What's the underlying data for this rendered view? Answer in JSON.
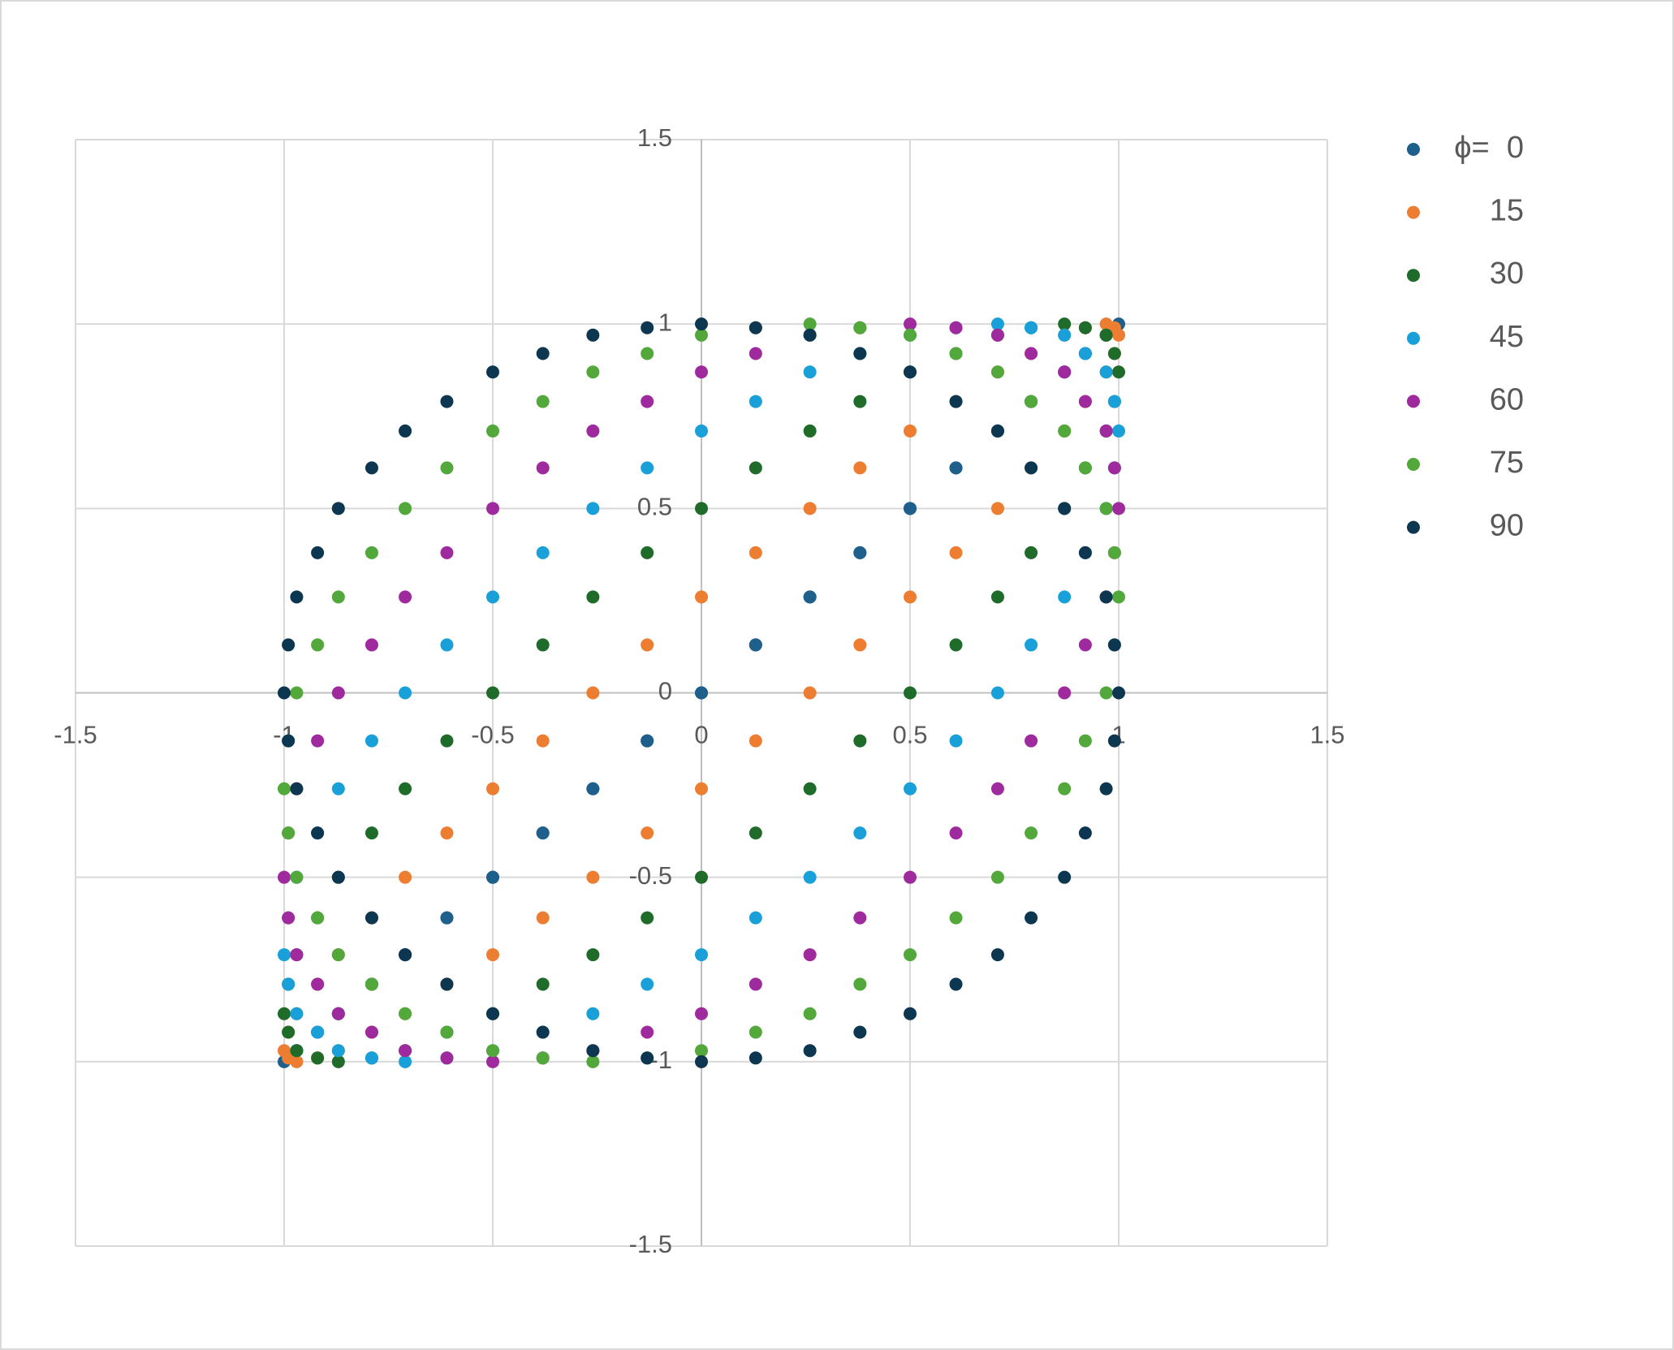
{
  "chart_data": {
    "type": "scatter",
    "x": [
      1,
      0.99,
      0.97,
      0.92,
      0.87,
      0.79,
      0.71,
      0.61,
      0.5,
      0.38,
      0.26,
      0.13,
      0,
      -0.13,
      -0.26,
      -0.38,
      -0.5,
      -0.61,
      -0.71,
      -0.79,
      -0.87,
      -0.92,
      -0.97,
      -0.99,
      -1,
      -0.99,
      -0.97,
      -0.92,
      -0.87,
      -0.79,
      -0.71,
      -0.61,
      -0.5,
      -0.38,
      -0.26,
      -0.13,
      0,
      0.13,
      0.26,
      0.38,
      0.5,
      0.61,
      0.71,
      0.79,
      0.87,
      0.92,
      0.97,
      0.99
    ],
    "series": [
      {
        "name": "ϕ=  0",
        "color": "#1f5f8b",
        "values": [
          1,
          0.99,
          0.97,
          0.92,
          0.87,
          0.79,
          0.71,
          0.61,
          0.5,
          0.38,
          0.26,
          0.13,
          0,
          -0.13,
          -0.26,
          -0.38,
          -0.5,
          -0.61,
          -0.71,
          -0.79,
          -0.87,
          -0.92,
          -0.97,
          -0.99,
          -1,
          -0.99,
          -0.97,
          -0.92,
          -0.87,
          -0.79,
          -0.71,
          -0.61,
          -0.5,
          -0.38,
          -0.26,
          -0.13,
          0,
          0.13,
          0.26,
          0.38,
          0.5,
          0.61,
          0.71,
          0.79,
          0.87,
          0.92,
          0.97,
          0.99
        ]
      },
      {
        "name": "15",
        "color": "#ed7d31",
        "values": [
          0.97,
          0.99,
          1,
          0.99,
          0.97,
          0.92,
          0.87,
          0.79,
          0.71,
          0.61,
          0.5,
          0.38,
          0.26,
          0.13,
          0,
          -0.13,
          -0.26,
          -0.38,
          -0.5,
          -0.61,
          -0.71,
          -0.79,
          -0.87,
          -0.92,
          -0.97,
          -0.99,
          -1,
          -0.99,
          -0.97,
          -0.92,
          -0.87,
          -0.79,
          -0.71,
          -0.61,
          -0.5,
          -0.38,
          -0.26,
          -0.13,
          0,
          0.13,
          0.26,
          0.38,
          0.5,
          0.61,
          0.71,
          0.79,
          0.87,
          0.92
        ]
      },
      {
        "name": "30",
        "color": "#1e6b2a",
        "values": [
          0.87,
          0.92,
          0.97,
          0.99,
          1,
          0.99,
          0.97,
          0.92,
          0.87,
          0.79,
          0.71,
          0.61,
          0.5,
          0.38,
          0.26,
          0.13,
          0,
          -0.13,
          -0.26,
          -0.38,
          -0.5,
          -0.61,
          -0.71,
          -0.79,
          -0.87,
          -0.92,
          -0.97,
          -0.99,
          -1,
          -0.99,
          -0.97,
          -0.92,
          -0.87,
          -0.79,
          -0.71,
          -0.61,
          -0.5,
          -0.38,
          -0.26,
          -0.13,
          0,
          0.13,
          0.26,
          0.38,
          0.5,
          0.61,
          0.71,
          0.79
        ]
      },
      {
        "name": "45",
        "color": "#1aa0d8",
        "values": [
          0.71,
          0.79,
          0.87,
          0.92,
          0.97,
          0.99,
          1,
          0.99,
          0.97,
          0.92,
          0.87,
          0.79,
          0.71,
          0.61,
          0.5,
          0.38,
          0.26,
          0.13,
          0,
          -0.13,
          -0.26,
          -0.38,
          -0.5,
          -0.61,
          -0.71,
          -0.79,
          -0.87,
          -0.92,
          -0.97,
          -0.99,
          -1,
          -0.99,
          -0.97,
          -0.92,
          -0.87,
          -0.79,
          -0.71,
          -0.61,
          -0.5,
          -0.38,
          -0.26,
          -0.13,
          0,
          0.13,
          0.26,
          0.38,
          0.5,
          0.61
        ]
      },
      {
        "name": "60",
        "color": "#9e2a9e",
        "values": [
          0.5,
          0.61,
          0.71,
          0.79,
          0.87,
          0.92,
          0.97,
          0.99,
          1,
          0.99,
          0.97,
          0.92,
          0.87,
          0.79,
          0.71,
          0.61,
          0.5,
          0.38,
          0.26,
          0.13,
          0,
          -0.13,
          -0.26,
          -0.38,
          -0.5,
          -0.61,
          -0.71,
          -0.79,
          -0.87,
          -0.92,
          -0.97,
          -0.99,
          -1,
          -0.99,
          -0.97,
          -0.92,
          -0.87,
          -0.79,
          -0.71,
          -0.61,
          -0.5,
          -0.38,
          -0.26,
          -0.13,
          0,
          0.13,
          0.26,
          0.38
        ]
      },
      {
        "name": "75",
        "color": "#52a83a",
        "values": [
          0.26,
          0.38,
          0.5,
          0.61,
          0.71,
          0.79,
          0.87,
          0.92,
          0.97,
          0.99,
          1,
          0.99,
          0.97,
          0.92,
          0.87,
          0.79,
          0.71,
          0.61,
          0.5,
          0.38,
          0.26,
          0.13,
          0,
          -0.13,
          -0.26,
          -0.38,
          -0.5,
          -0.61,
          -0.71,
          -0.79,
          -0.87,
          -0.92,
          -0.97,
          -0.99,
          -1,
          -0.99,
          -0.97,
          -0.92,
          -0.87,
          -0.79,
          -0.71,
          -0.61,
          -0.5,
          -0.38,
          -0.26,
          -0.13,
          0,
          0.13
        ]
      },
      {
        "name": "90",
        "color": "#0d3650",
        "values": [
          0,
          0.13,
          0.26,
          0.38,
          0.5,
          0.61,
          0.71,
          0.79,
          0.87,
          0.92,
          0.97,
          0.99,
          1,
          0.99,
          0.97,
          0.92,
          0.87,
          0.79,
          0.71,
          0.61,
          0.5,
          0.38,
          0.26,
          0.13,
          0,
          -0.13,
          -0.26,
          -0.38,
          -0.5,
          -0.61,
          -0.71,
          -0.79,
          -0.87,
          -0.92,
          -0.97,
          -0.99,
          -1,
          -0.99,
          -0.97,
          -0.92,
          -0.87,
          -0.79,
          -0.71,
          -0.61,
          -0.5,
          -0.38,
          -0.26,
          -0.13
        ]
      }
    ],
    "xlim": [
      -1.5,
      1.5
    ],
    "ylim": [
      -1.5,
      1.5
    ],
    "xticks": [
      -1.5,
      -1,
      -0.5,
      0,
      0.5,
      1,
      1.5
    ],
    "yticks": [
      -1.5,
      -1,
      -0.5,
      0,
      0.5,
      1,
      1.5
    ],
    "grid": true,
    "legend": "right"
  }
}
